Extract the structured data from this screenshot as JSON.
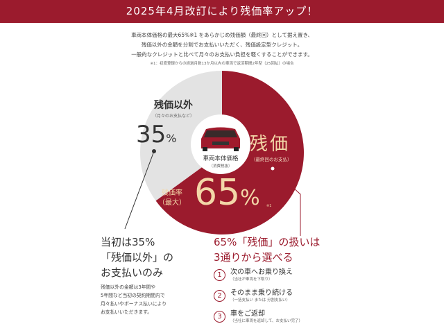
{
  "header": {
    "title": "2025年4月改訂により残価率アップ！"
  },
  "intro": {
    "lines": [
      "車両本体価格の最大65%※1 をあらかじめ残価額（最終回）として据え置き、",
      "残価以外の金額を分割でお支払いいただく、残価設定型クレジット。",
      "一般的なクレジットと比べて月々のお支払い負担を軽くすることができます。"
    ],
    "note": "※1：初度登録からの経過月数13か月以内の車両で返済期間2年型（25回払）の場合"
  },
  "pie": {
    "grey": {
      "label": "残価以外",
      "sub": "（月々のお支払など）",
      "value": "35",
      "unit": "%",
      "color": "#e3e3e3",
      "fraction": 0.35
    },
    "red": {
      "label": "残価",
      "sub": "（最終回のお支払）",
      "rate_label": "残価率",
      "rate_sub": "（最大）",
      "value": "65",
      "unit": "%",
      "note": "※1",
      "color": "#9b1b2d",
      "fraction": 0.65
    },
    "center": {
      "label": "車両本体価格",
      "sub": "（消費税抜）"
    }
  },
  "left": {
    "head": [
      "当初は35%",
      "「残価以外」の",
      "お支払いのみ"
    ],
    "body": [
      "残価以外の金額は3年間や",
      "5年間など当初の契約期間内で",
      "月々払いやボーナス払いにより",
      "お支払いいただきます。"
    ]
  },
  "right": {
    "head": [
      "65%「残価」の扱いは",
      "3通りから選べる"
    ],
    "options": [
      {
        "num": "1",
        "title": "次の車へお乗り換え",
        "sub": "（当社が車両を下取り）"
      },
      {
        "num": "2",
        "title": "そのまま乗り続ける",
        "sub": "（一括支払い または 分割支払い）"
      },
      {
        "num": "3",
        "title": "車をご返却",
        "sub": "（当社に車両を返却して、お支払い完了）"
      }
    ]
  }
}
